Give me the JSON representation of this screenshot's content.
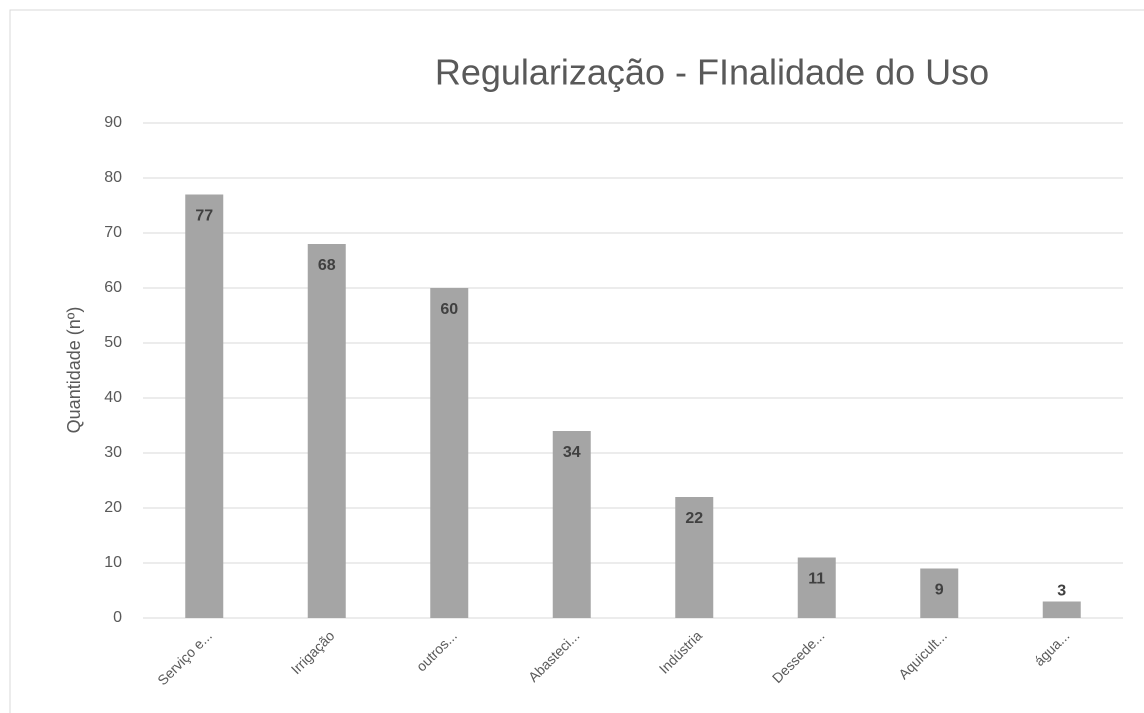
{
  "chart_data": {
    "type": "bar",
    "title": "Regularização - FInalidade do Uso",
    "y_label": "Quantidade (nº)",
    "categories": [
      "Serviço e...",
      "Irrigação",
      "outros...",
      "Abasteci...",
      "Indústria",
      "Dessede...",
      "Aquicult...",
      "água..."
    ],
    "values": [
      77,
      68,
      60,
      34,
      22,
      11,
      9,
      3
    ],
    "color": "#a5a5a5",
    "ylim": [
      0,
      90
    ],
    "yticks": [
      0,
      10,
      20,
      30,
      40,
      50,
      60,
      70,
      80,
      90
    ],
    "grid": true
  }
}
